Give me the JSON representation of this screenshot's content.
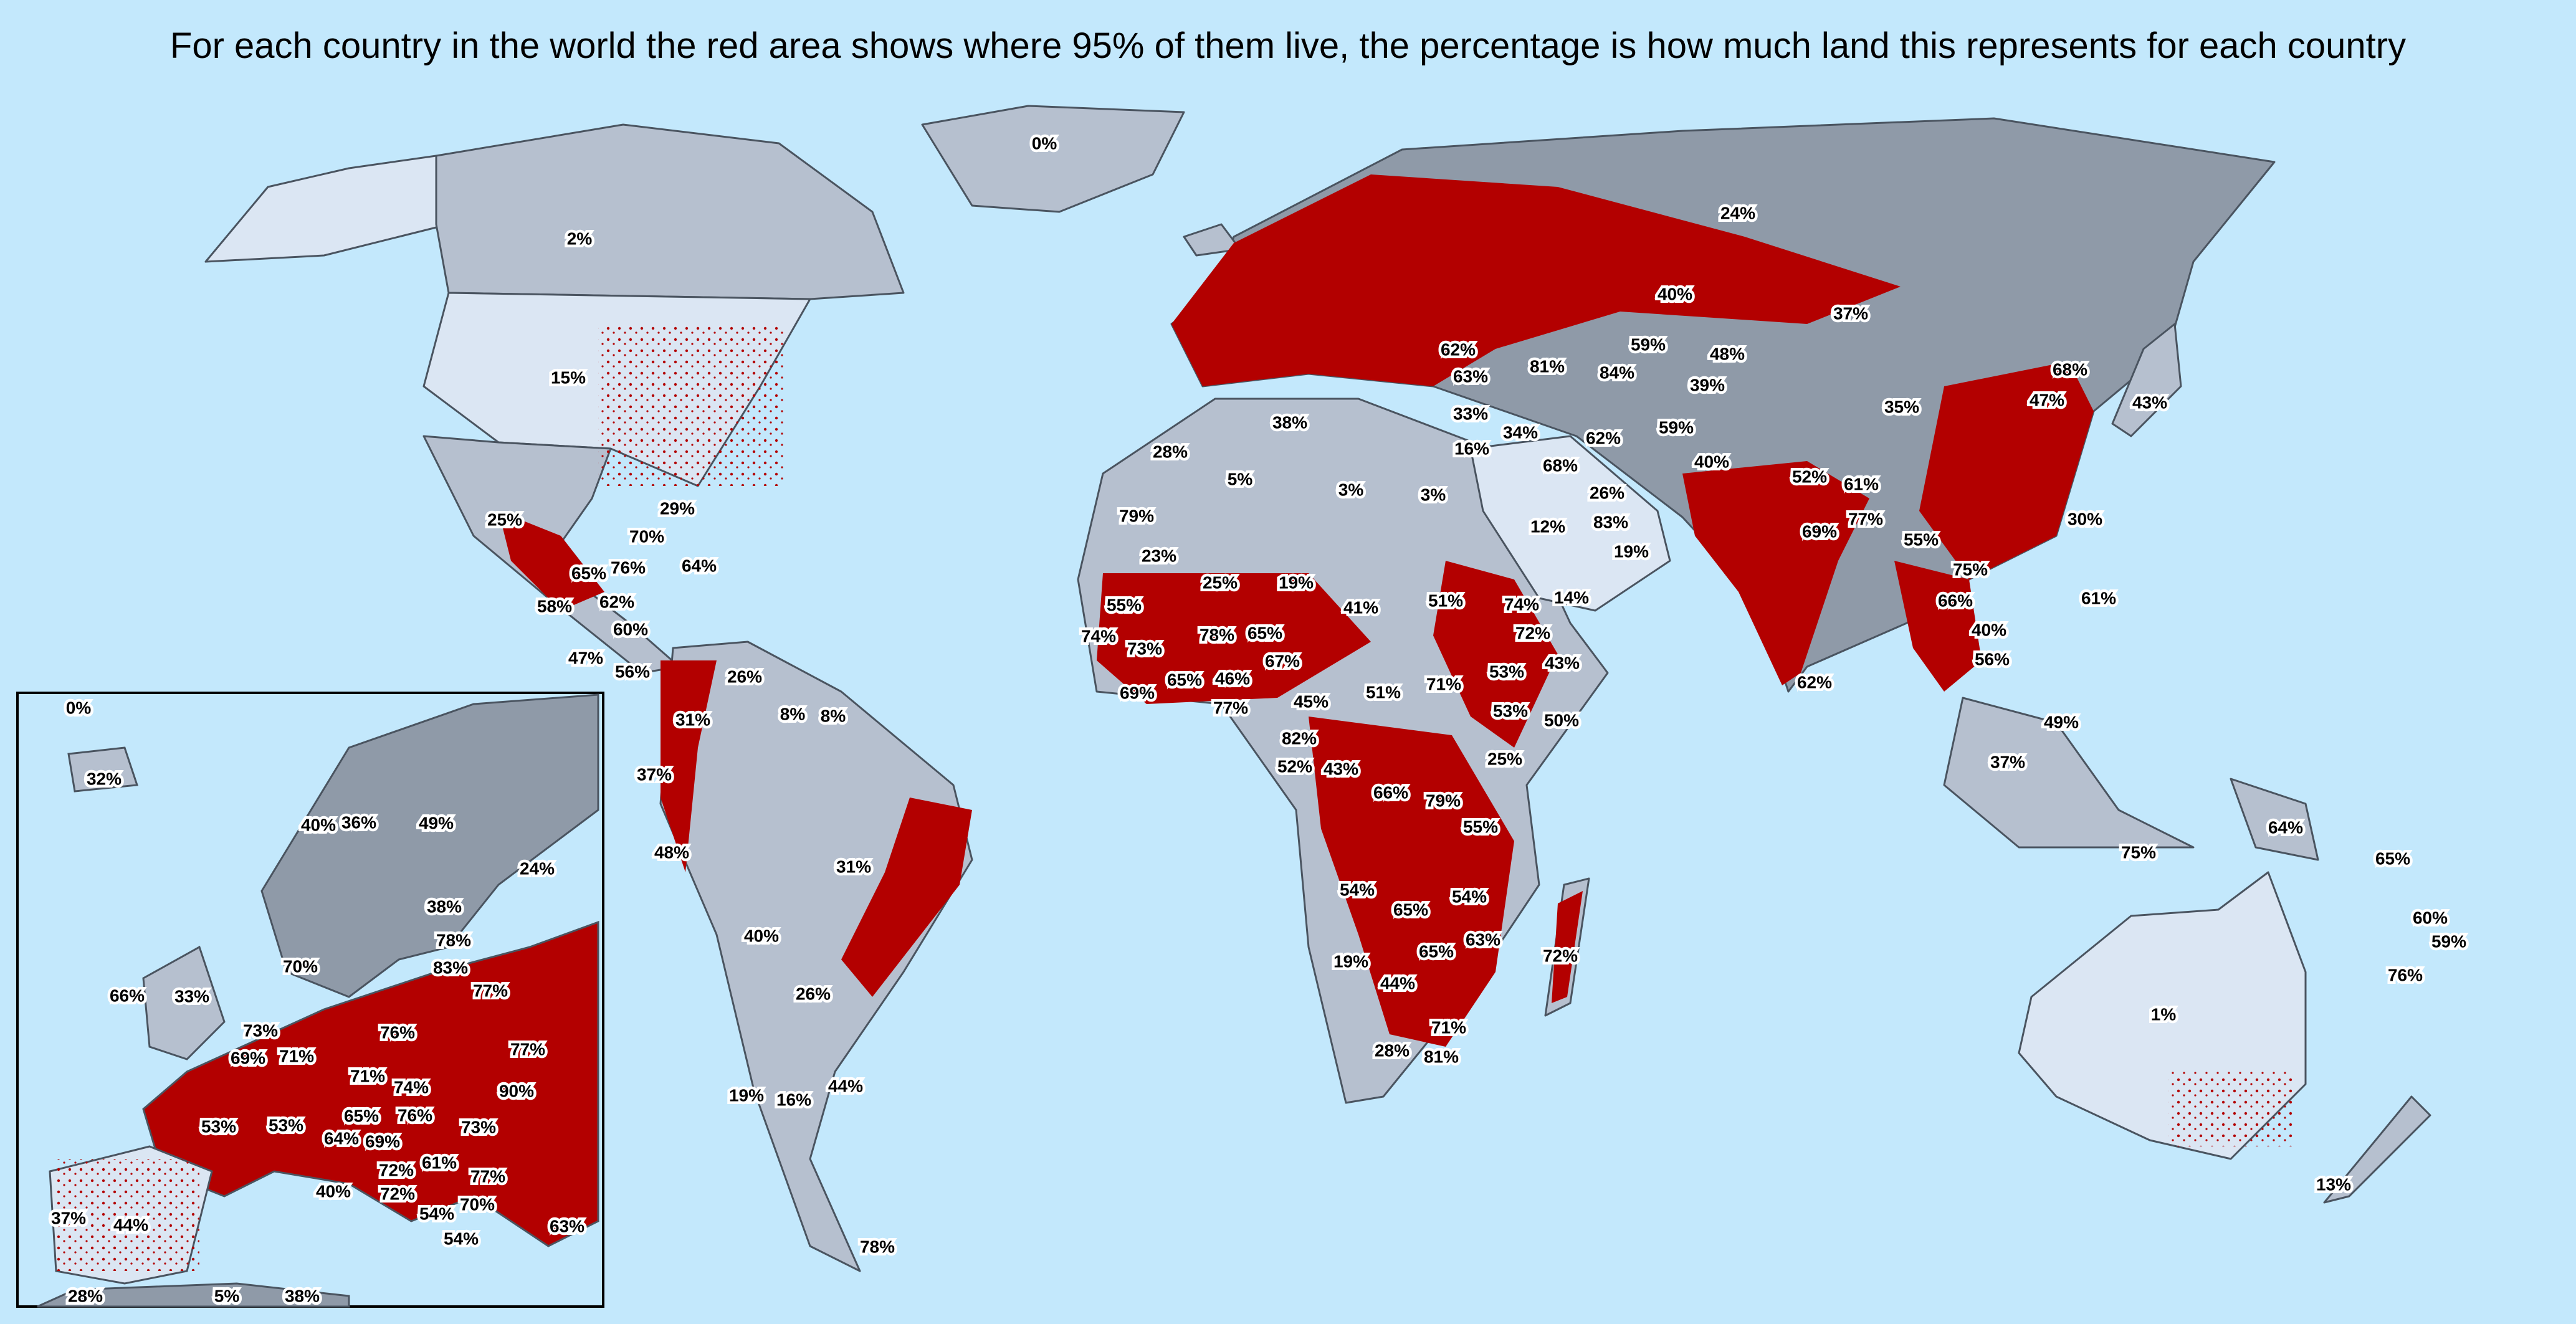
{
  "title": "For each country in the world the red area shows where 95% of them live, the percentage is how much land this represents for each country",
  "colors": {
    "ocean": "#c3e8fc",
    "land_light": "#dbe6f3",
    "land_mid": "#b6c0cf",
    "land_dark": "#8f9aa8",
    "populated": "#b30000",
    "border": "#4a5460",
    "label_bg": "#ffffff"
  },
  "world_labels": [
    {
      "country": "Greenland",
      "value": "0%"
    },
    {
      "country": "Canada",
      "value": "2%"
    },
    {
      "country": "United States",
      "value": "15%"
    },
    {
      "country": "Mexico",
      "value": "25%"
    },
    {
      "country": "Cuba",
      "value": "29%"
    },
    {
      "country": "Jamaica",
      "value": "70%"
    },
    {
      "country": "Haiti",
      "value": "76%"
    },
    {
      "country": "Dominican Republic",
      "value": "64%"
    },
    {
      "country": "Guatemala",
      "value": "58%"
    },
    {
      "country": "Honduras",
      "value": "65%"
    },
    {
      "country": "El Salvador",
      "value": "62%"
    },
    {
      "country": "Nicaragua",
      "value": "60%"
    },
    {
      "country": "Costa Rica",
      "value": "47%"
    },
    {
      "country": "Panama",
      "value": "56%"
    },
    {
      "country": "Colombia",
      "value": "31%"
    },
    {
      "country": "Venezuela",
      "value": "26%"
    },
    {
      "country": "Guyana",
      "value": "8%"
    },
    {
      "country": "Suriname",
      "value": "8%"
    },
    {
      "country": "Ecuador",
      "value": "37%"
    },
    {
      "country": "Peru",
      "value": "48%"
    },
    {
      "country": "Brazil",
      "value": "31%"
    },
    {
      "country": "Bolivia",
      "value": "40%"
    },
    {
      "country": "Paraguay",
      "value": "26%"
    },
    {
      "country": "Chile",
      "value": "19%"
    },
    {
      "country": "Argentina",
      "value": "16%"
    },
    {
      "country": "Uruguay",
      "value": "44%"
    },
    {
      "country": "Falkland Islands",
      "value": "78%"
    },
    {
      "country": "Russia",
      "value": "24%"
    },
    {
      "country": "Kazakhstan",
      "value": "40%"
    },
    {
      "country": "Mongolia",
      "value": "37%"
    },
    {
      "country": "China",
      "value": "35%"
    },
    {
      "country": "South Korea",
      "value": "68%"
    },
    {
      "country": "North Korea",
      "value": "47%"
    },
    {
      "country": "Japan",
      "value": "43%"
    },
    {
      "country": "Georgia",
      "value": "62%"
    },
    {
      "country": "Armenia",
      "value": "81%"
    },
    {
      "country": "Turkey",
      "value": "63%"
    },
    {
      "country": "Uzbekistan",
      "value": "59%"
    },
    {
      "country": "Kyrgyzstan",
      "value": "48%"
    },
    {
      "country": "Turkmenistan",
      "value": "84%"
    },
    {
      "country": "Tajikistan",
      "value": "39%"
    },
    {
      "country": "Syria",
      "value": "33%"
    },
    {
      "country": "Israel",
      "value": "16%"
    },
    {
      "country": "Iraq",
      "value": "34%"
    },
    {
      "country": "Iran",
      "value": "62%"
    },
    {
      "country": "Afghanistan",
      "value": "59%"
    },
    {
      "country": "Pakistan",
      "value": "40%"
    },
    {
      "country": "Kuwait",
      "value": "68%"
    },
    {
      "country": "Qatar",
      "value": "26%"
    },
    {
      "country": "UAE",
      "value": "83%"
    },
    {
      "country": "Oman",
      "value": "19%"
    },
    {
      "country": "Saudi Arabia",
      "value": "12%"
    },
    {
      "country": "Yemen",
      "value": "14%"
    },
    {
      "country": "Nepal",
      "value": "52%"
    },
    {
      "country": "Bhutan",
      "value": "61%"
    },
    {
      "country": "India",
      "value": "69%"
    },
    {
      "country": "Bangladesh",
      "value": "77%"
    },
    {
      "country": "Myanmar",
      "value": "55%"
    },
    {
      "country": "Taiwan",
      "value": "30%"
    },
    {
      "country": "Laos",
      "value": "75%"
    },
    {
      "country": "Thailand",
      "value": "66%"
    },
    {
      "country": "Vietnam",
      "value": "40%"
    },
    {
      "country": "Cambodia",
      "value": "56%"
    },
    {
      "country": "Sri Lanka",
      "value": "62%"
    },
    {
      "country": "Philippines",
      "value": "61%"
    },
    {
      "country": "Malaysia",
      "value": "49%"
    },
    {
      "country": "Brunei",
      "value": "37%"
    },
    {
      "country": "Indonesia",
      "value": "75%"
    },
    {
      "country": "Papua New Guinea",
      "value": "64%"
    },
    {
      "country": "Solomon Islands",
      "value": "65%"
    },
    {
      "country": "Vanuatu",
      "value": "60%"
    },
    {
      "country": "Fiji",
      "value": "59%"
    },
    {
      "country": "New Caledonia",
      "value": "76%"
    },
    {
      "country": "Australia",
      "value": "1%"
    },
    {
      "country": "New Zealand",
      "value": "13%"
    },
    {
      "country": "Tunisia",
      "value": "38%"
    },
    {
      "country": "Morocco",
      "value": "28%"
    },
    {
      "country": "Algeria",
      "value": "5%"
    },
    {
      "country": "Libya",
      "value": "3%"
    },
    {
      "country": "Egypt",
      "value": "3%"
    },
    {
      "country": "Western Sahara",
      "value": "79%"
    },
    {
      "country": "Mauritania",
      "value": "23%"
    },
    {
      "country": "Mali",
      "value": "25%"
    },
    {
      "country": "Niger",
      "value": "19%"
    },
    {
      "country": "Chad",
      "value": "41%"
    },
    {
      "country": "Sudan",
      "value": "51%"
    },
    {
      "country": "Eritrea",
      "value": "74%"
    },
    {
      "country": "Djibouti",
      "value": "72%"
    },
    {
      "country": "Ethiopia",
      "value": "53%"
    },
    {
      "country": "Somalia",
      "value": "43%"
    },
    {
      "country": "Senegal",
      "value": "55%"
    },
    {
      "country": "Gambia",
      "value": "74%"
    },
    {
      "country": "Guinea-Bissau",
      "value": "73%"
    },
    {
      "country": "Sierra Leone",
      "value": "69%"
    },
    {
      "country": "Guinea",
      "value": "65%"
    },
    {
      "country": "Burkina Faso",
      "value": "78%"
    },
    {
      "country": "Ghana",
      "value": "46%"
    },
    {
      "country": "Togo",
      "value": "65%"
    },
    {
      "country": "Ivory Coast",
      "value": "77%"
    },
    {
      "country": "Nigeria",
      "value": "67%"
    },
    {
      "country": "Cameroon",
      "value": "45%"
    },
    {
      "country": "Central African Republic",
      "value": "51%"
    },
    {
      "country": "South Sudan",
      "value": "71%"
    },
    {
      "country": "Equatorial Guinea",
      "value": "82%"
    },
    {
      "country": "Gabon",
      "value": "52%"
    },
    {
      "country": "Congo",
      "value": "43%"
    },
    {
      "country": "Uganda",
      "value": "53%"
    },
    {
      "country": "Kenya",
      "value": "50%"
    },
    {
      "country": "Kenya east",
      "value": "25%"
    },
    {
      "country": "DR Congo",
      "value": "66%"
    },
    {
      "country": "Burundi",
      "value": "79%"
    },
    {
      "country": "Tanzania",
      "value": "55%"
    },
    {
      "country": "Angola",
      "value": "54%"
    },
    {
      "country": "Zambia",
      "value": "65%"
    },
    {
      "country": "Malawi",
      "value": "54%"
    },
    {
      "country": "Mozambique",
      "value": "63%"
    },
    {
      "country": "Zimbabwe",
      "value": "65%"
    },
    {
      "country": "Namibia",
      "value": "19%"
    },
    {
      "country": "Botswana",
      "value": "44%"
    },
    {
      "country": "Eswatini",
      "value": "71%"
    },
    {
      "country": "South Africa",
      "value": "28%"
    },
    {
      "country": "Lesotho",
      "value": "81%"
    },
    {
      "country": "Madagascar",
      "value": "72%"
    }
  ],
  "inset_labels": [
    {
      "country": "Svalbard",
      "value": "0%"
    },
    {
      "country": "Iceland",
      "value": "32%"
    },
    {
      "country": "Norway",
      "value": "40%"
    },
    {
      "country": "Sweden",
      "value": "36%"
    },
    {
      "country": "Finland",
      "value": "49%"
    },
    {
      "country": "Russia",
      "value": "24%"
    },
    {
      "country": "Estonia",
      "value": "38%"
    },
    {
      "country": "Latvia",
      "value": "78%"
    },
    {
      "country": "Lithuania",
      "value": "83%"
    },
    {
      "country": "Denmark",
      "value": "70%"
    },
    {
      "country": "Belarus",
      "value": "77%"
    },
    {
      "country": "Ireland",
      "value": "66%"
    },
    {
      "country": "United Kingdom",
      "value": "33%"
    },
    {
      "country": "Netherlands",
      "value": "73%"
    },
    {
      "country": "Poland",
      "value": "76%"
    },
    {
      "country": "Ukraine",
      "value": "77%"
    },
    {
      "country": "Belgium",
      "value": "69%"
    },
    {
      "country": "Germany",
      "value": "71%"
    },
    {
      "country": "Czechia",
      "value": "71%"
    },
    {
      "country": "Slovakia",
      "value": "74%"
    },
    {
      "country": "Moldova",
      "value": "90%"
    },
    {
      "country": "France",
      "value": "53%"
    },
    {
      "country": "Switzerland",
      "value": "53%"
    },
    {
      "country": "Austria",
      "value": "65%"
    },
    {
      "country": "Hungary",
      "value": "76%"
    },
    {
      "country": "Romania",
      "value": "73%"
    },
    {
      "country": "Slovenia",
      "value": "64%"
    },
    {
      "country": "Croatia",
      "value": "69%"
    },
    {
      "country": "Bosnia",
      "value": "72%"
    },
    {
      "country": "Serbia",
      "value": "61%"
    },
    {
      "country": "Bulgaria",
      "value": "77%"
    },
    {
      "country": "Italy",
      "value": "40%"
    },
    {
      "country": "Montenegro",
      "value": "72%"
    },
    {
      "country": "Kosovo",
      "value": "54%"
    },
    {
      "country": "North Macedonia",
      "value": "70%"
    },
    {
      "country": "Albania",
      "value": "54%"
    },
    {
      "country": "Turkey",
      "value": "63%"
    },
    {
      "country": "Portugal",
      "value": "37%"
    },
    {
      "country": "Spain",
      "value": "44%"
    },
    {
      "country": "Morocco",
      "value": "28%"
    },
    {
      "country": "Algeria",
      "value": "5%"
    },
    {
      "country": "Tunisia",
      "value": "38%"
    }
  ]
}
